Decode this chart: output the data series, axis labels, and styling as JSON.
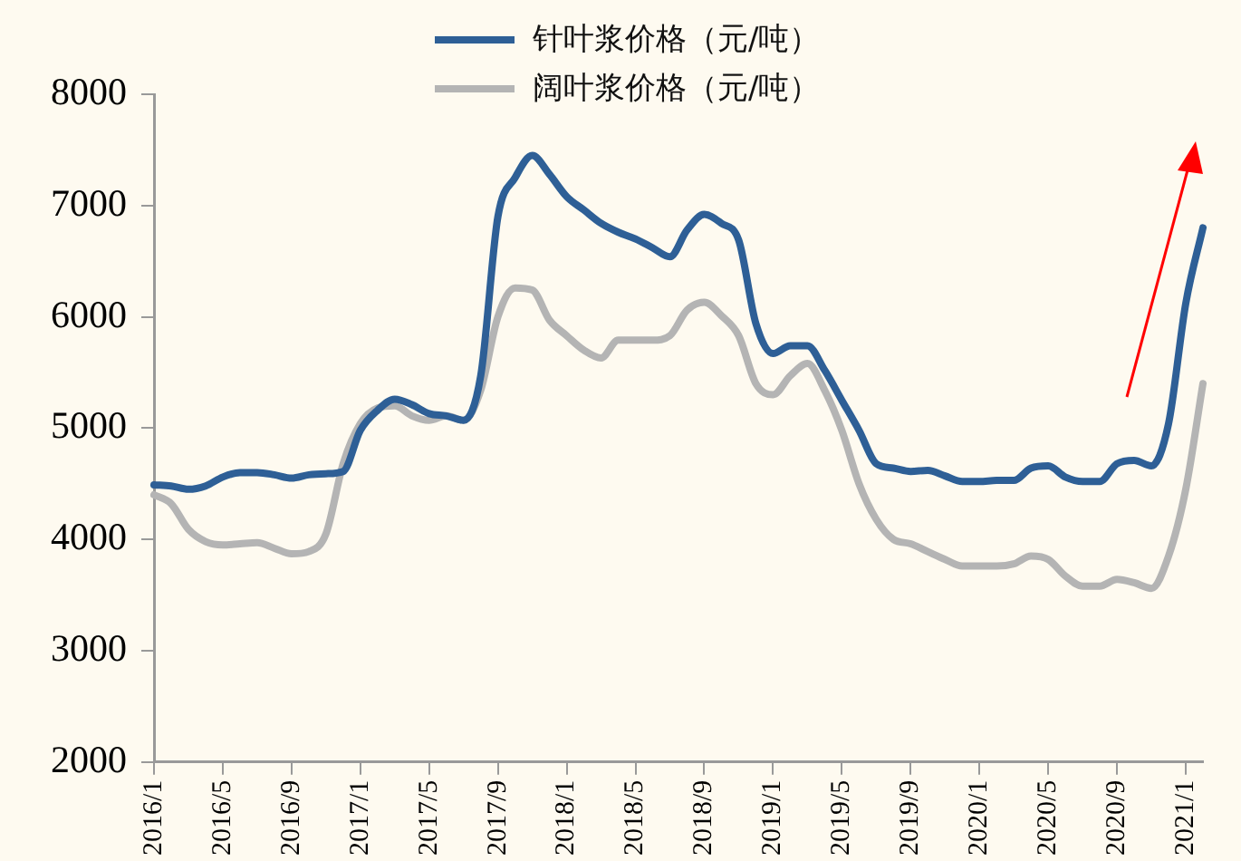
{
  "chart_data": {
    "type": "line",
    "categories": [
      "2016/1",
      null,
      null,
      null,
      "2016/5",
      null,
      null,
      null,
      "2016/9",
      null,
      null,
      null,
      "2017/1",
      null,
      null,
      null,
      "2017/5",
      null,
      null,
      null,
      "2017/9",
      null,
      null,
      null,
      "2018/1",
      null,
      null,
      null,
      "2018/5",
      null,
      null,
      null,
      "2018/9",
      null,
      null,
      null,
      "2019/1",
      null,
      null,
      null,
      "2019/5",
      null,
      null,
      null,
      "2019/9",
      null,
      null,
      null,
      "2020/1",
      null,
      null,
      null,
      "2020/5",
      null,
      null,
      null,
      "2020/9",
      null,
      null,
      null,
      "2021/1",
      null
    ],
    "series": [
      {
        "name": "针叶浆价格（元/吨）",
        "color": "#2e5f96",
        "values": [
          4490,
          4480,
          4450,
          4480,
          4560,
          4600,
          4600,
          4580,
          4550,
          4580,
          4590,
          4610,
          4980,
          5160,
          5260,
          5210,
          5130,
          5110,
          5070,
          5470,
          6900,
          7250,
          7450,
          7280,
          7080,
          6960,
          6840,
          6760,
          6700,
          6620,
          6540,
          6780,
          6920,
          6840,
          6690,
          5940,
          5670,
          5740,
          5740,
          5520,
          5250,
          4980,
          4680,
          4640,
          4610,
          4620,
          4570,
          4520,
          4520,
          4530,
          4530,
          4640,
          4660,
          4560,
          4520,
          4520,
          4680,
          4710,
          4660,
          5040,
          6120,
          6800
        ]
      },
      {
        "name": "阔叶浆价格（元/吨）",
        "color": "#b4b4b4",
        "values": [
          4400,
          4320,
          4090,
          3980,
          3950,
          3960,
          3970,
          3920,
          3870,
          3890,
          4050,
          4680,
          5040,
          5180,
          5200,
          5110,
          5070,
          5110,
          5070,
          5340,
          6000,
          6260,
          6240,
          5970,
          5830,
          5700,
          5630,
          5790,
          5790,
          5790,
          5830,
          6060,
          6130,
          6010,
          5830,
          5400,
          5300,
          5470,
          5580,
          5340,
          4980,
          4500,
          4180,
          4000,
          3960,
          3890,
          3820,
          3760,
          3760,
          3760,
          3780,
          3850,
          3820,
          3670,
          3580,
          3580,
          3640,
          3610,
          3560,
          3850,
          4450,
          5400
        ]
      }
    ],
    "ylim": [
      2000,
      8000
    ],
    "yticks": [
      2000,
      3000,
      4000,
      5000,
      6000,
      7000,
      8000
    ],
    "grid": false,
    "legend": "top",
    "marker": "none",
    "line_style": "solid"
  }
}
